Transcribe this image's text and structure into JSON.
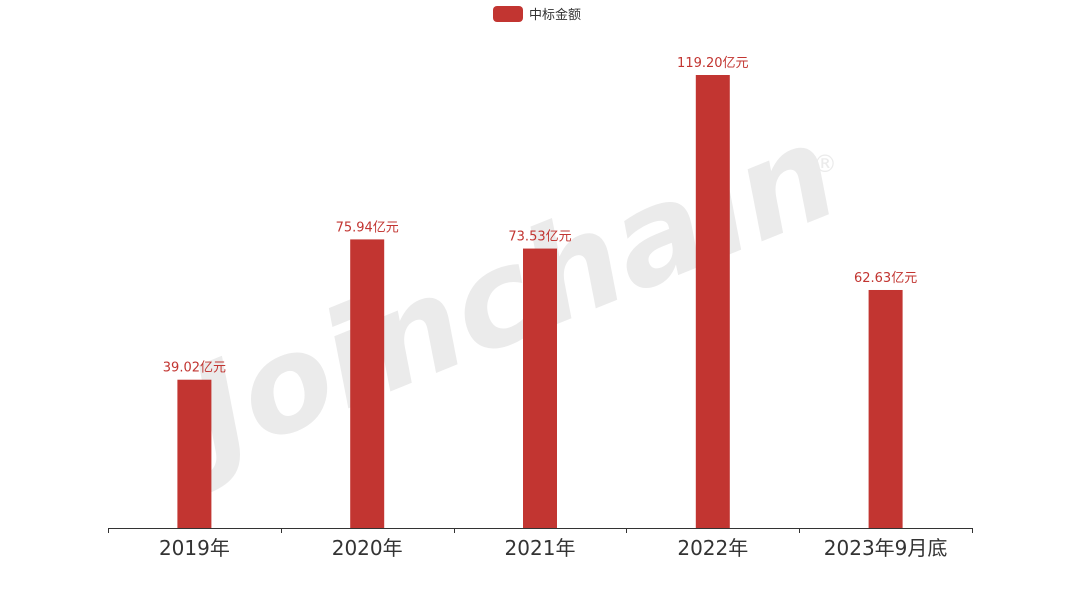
{
  "watermark": {
    "text": "Joinchain",
    "mark": "®"
  },
  "chart_data": {
    "type": "bar",
    "legend": {
      "label": "中标金额",
      "position": "top-center"
    },
    "categories": [
      "2019年",
      "2020年",
      "2021年",
      "2022年",
      "2023年9月底"
    ],
    "series": [
      {
        "name": "中标金额",
        "values": [
          39.02,
          75.94,
          73.53,
          119.2,
          62.63
        ],
        "labels": [
          "39.02亿元",
          "75.94亿元",
          "73.53亿元",
          "119.20亿元",
          "62.63亿元"
        ],
        "color": "#c23531"
      }
    ],
    "ylim": [
      0,
      119.2
    ],
    "grid": false,
    "y_axis_visible": false
  }
}
